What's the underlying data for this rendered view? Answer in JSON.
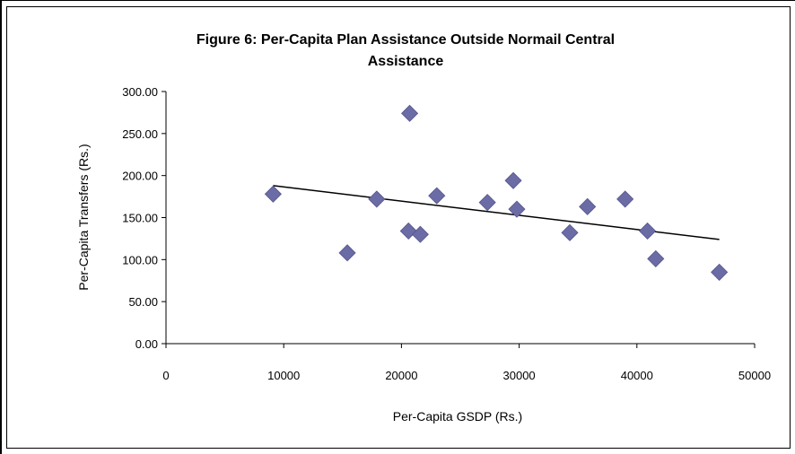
{
  "chart_data": {
    "type": "scatter",
    "title_lines": [
      "Figure 6: Per-Capita Plan Assistance Outside Normail Central",
      "Assistance"
    ],
    "xlabel": "Per-Capita GSDP (Rs.)",
    "ylabel": "Per-Capita Transfers (Rs.)",
    "xlim": [
      0,
      50000
    ],
    "ylim": [
      0,
      300
    ],
    "x_ticks": [
      "0",
      "10000",
      "20000",
      "30000",
      "40000",
      "50000"
    ],
    "y_ticks": [
      "0.00",
      "50.00",
      "100.00",
      "150.00",
      "200.00",
      "250.00",
      "300.00"
    ],
    "grid": false,
    "legend": "none",
    "marker_color": "#6b6ba6",
    "trendline_color": "#000000",
    "points": [
      {
        "x": 9100,
        "y": 178
      },
      {
        "x": 15400,
        "y": 108
      },
      {
        "x": 17900,
        "y": 172
      },
      {
        "x": 20600,
        "y": 134
      },
      {
        "x": 20700,
        "y": 274
      },
      {
        "x": 21600,
        "y": 130
      },
      {
        "x": 23000,
        "y": 176
      },
      {
        "x": 27300,
        "y": 168
      },
      {
        "x": 29500,
        "y": 194
      },
      {
        "x": 29800,
        "y": 160
      },
      {
        "x": 34300,
        "y": 132
      },
      {
        "x": 35800,
        "y": 163
      },
      {
        "x": 39000,
        "y": 172
      },
      {
        "x": 40900,
        "y": 134
      },
      {
        "x": 41600,
        "y": 101
      },
      {
        "x": 47000,
        "y": 85
      }
    ],
    "trendline": {
      "x": [
        9100,
        47000
      ],
      "y": [
        188,
        124
      ]
    }
  }
}
